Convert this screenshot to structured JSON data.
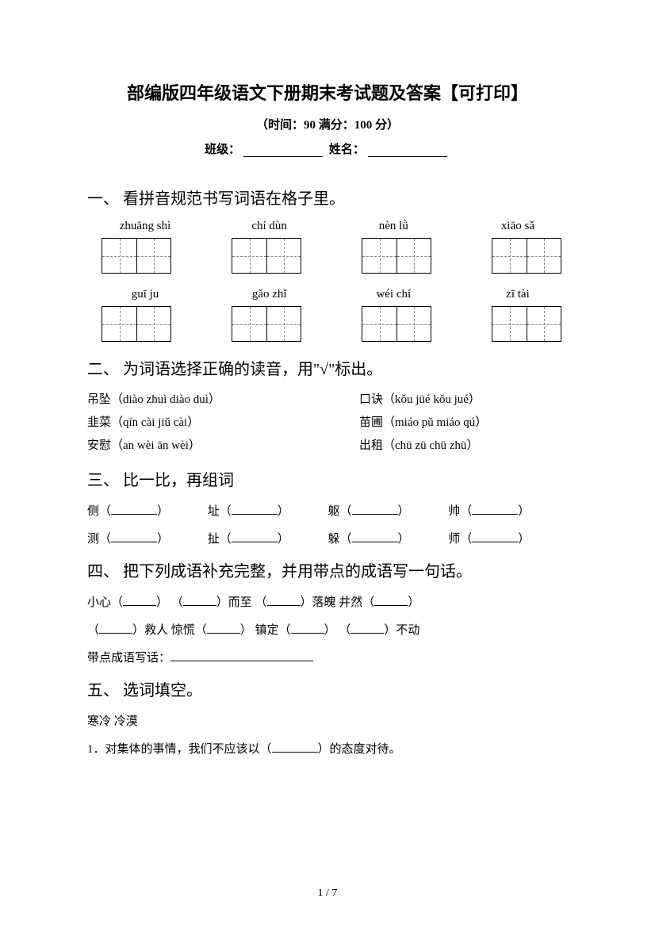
{
  "title": "部编版四年级语文下册期末考试题及答案【可打印】",
  "subtitle": "（时间：90  满分：100 分）",
  "class_label": "班级：",
  "name_label": "姓名：",
  "q1": {
    "heading": "一、 看拼音规范书写词语在格子里。",
    "row1": [
      "zhuāng shì",
      "chí dùn",
      "nèn lǜ",
      "xiāo sǎ"
    ],
    "row2": [
      "guī  ju",
      "gǎo zhǐ",
      "wéi  chí",
      "zī  tài"
    ]
  },
  "q2": {
    "heading": "二、 为词语选择正确的读音，用\"√\"标出。",
    "left": [
      "吊坠（diào zhuì   diào duì）",
      "韭菜（qín cài   jiǔ cài）",
      "安慰（an wèi   ān wèi）"
    ],
    "right": [
      "口诀（kǒu jüé   kǒu jué）",
      "苗圃（miáo pǔ   miáo qú）",
      "出租（chū zū     chū zhū）"
    ]
  },
  "q3": {
    "heading": "三、 比一比，再组词",
    "rows": [
      [
        "侧",
        "址",
        "躯",
        "帅"
      ],
      [
        "测",
        "扯",
        "躲",
        "师"
      ]
    ]
  },
  "q4": {
    "heading": "四、 把下列成语补充完整，并用带点的成语写一句话。",
    "line1_parts": [
      "小心（",
      "）   （",
      "）而至   （",
      "）落魄   井然（",
      "）"
    ],
    "line2_parts": [
      "（",
      "）救人   惊慌（",
      "）   镇定（",
      "）   （",
      "）不动"
    ],
    "sentence_label": "带点成语写话："
  },
  "q5": {
    "heading": "五、 选词填空。",
    "words": "寒冷     冷漠",
    "item1": "1．对集体的事情，我们不应该以（",
    "item1_end": "）的态度对待。"
  },
  "page_num": "1 / 7"
}
